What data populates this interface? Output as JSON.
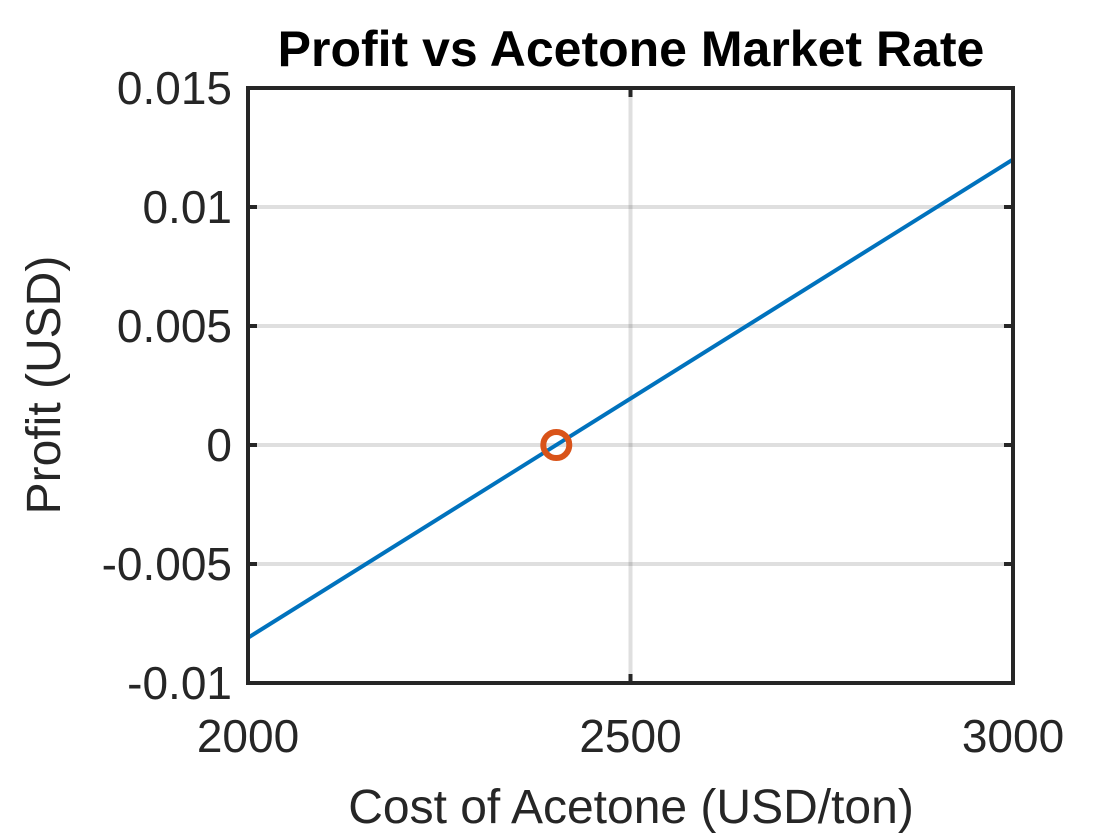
{
  "chart_data": {
    "type": "line",
    "title": "Profit vs Acetone Market Rate",
    "xlabel": "Cost of Acetone (USD/ton)",
    "ylabel": "Profit (USD)",
    "xlim": [
      2000,
      3000
    ],
    "ylim": [
      -0.01,
      0.015
    ],
    "x_ticks": [
      2000,
      2500,
      3000
    ],
    "x_tick_labels": [
      "2000",
      "2500",
      "3000"
    ],
    "y_ticks": [
      -0.01,
      -0.005,
      0,
      0.005,
      0.01,
      0.015
    ],
    "y_tick_labels": [
      "-0.01",
      "-0.005",
      "0",
      "0.005",
      "0.01",
      "0.015"
    ],
    "grid": true,
    "series": [
      {
        "type": "line",
        "color": "#0072BD",
        "x": [
          2000,
          3000
        ],
        "y": [
          -0.0081,
          0.012
        ]
      },
      {
        "type": "marker",
        "marker": "circle",
        "color": "#D95319",
        "x": [
          2403
        ],
        "y": [
          0
        ]
      }
    ]
  }
}
